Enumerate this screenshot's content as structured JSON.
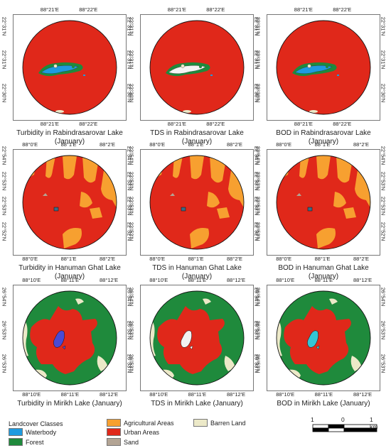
{
  "legend": {
    "title": "Landcover Classes",
    "items": [
      {
        "label": "Waterbody",
        "color": "#1e9be0"
      },
      {
        "label": "Forest",
        "color": "#1f8a3c"
      },
      {
        "label": "Agricultural Areas",
        "color": "#f7a030"
      },
      {
        "label": "Urban Areas",
        "color": "#e0281a"
      },
      {
        "label": "Sand",
        "color": "#b3a494"
      },
      {
        "label": "Barren Land",
        "color": "#ece9c8"
      }
    ]
  },
  "scalebar": {
    "labels": [
      "1",
      "0",
      "1 km"
    ]
  },
  "rows": [
    {
      "top_ticks": [
        "88°21'E",
        "88°22'E"
      ],
      "bottom_ticks": [
        "88°21'E",
        "88°22'E"
      ],
      "left_ticks": [
        "22°31'N",
        "22°31'N",
        "22°30'N"
      ],
      "right_ticks": [
        "22°31'N",
        "22°31'N",
        "22°30'N"
      ],
      "captions": [
        "Turbidity in Rabindrasarovar Lake (January)",
        "TDS in Rabindrasarovar Lake (January)",
        "BOD in Rabindrasarovar Lake (January)"
      ]
    },
    {
      "top_ticks": [
        "88°0'E",
        "88°1'E",
        "88°2'E"
      ],
      "bottom_ticks": [
        "88°0'E",
        "88°1'E",
        "88°2'E"
      ],
      "left_ticks": [
        "22°54'N",
        "22°53'N",
        "22°53'N",
        "22°52'N"
      ],
      "right_ticks": [
        "22°54'N",
        "22°53'N",
        "22°53'N",
        "22°52'N"
      ],
      "captions": [
        "Turbidity in Hanuman Ghat Lake (January)",
        "TDS in Hanuman Ghat Lake (January)",
        "BOD in Hanuman Ghat Lake (January)"
      ]
    },
    {
      "top_ticks": [
        "88°10'E",
        "88°11'E",
        "88°12'E"
      ],
      "bottom_ticks": [
        "88°10'E",
        "88°11'E",
        "88°12'E"
      ],
      "left_ticks": [
        "26°54'N",
        "26°53'N",
        "26°53'N"
      ],
      "right_ticks": [
        "26°54'N",
        "26°53'N",
        "26°53'N"
      ],
      "captions": [
        "Turbidity in Mirikh Lake (January)",
        "TDS in Mirikh Lake (January)",
        "BOD in Mirikh Lake (January)"
      ]
    }
  ]
}
